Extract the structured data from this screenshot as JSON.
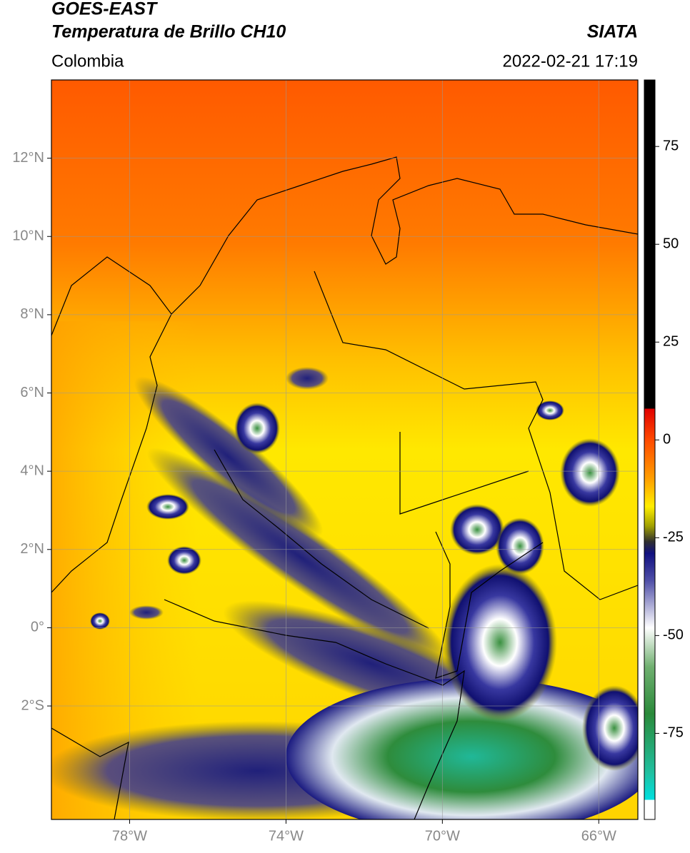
{
  "title": "GOES-EAST",
  "subtitle": "Temperatura de Brillo CH10",
  "source": "SIATA",
  "region": "Colombia",
  "timestamp": "2022-02-21 17:19",
  "map": {
    "xlim": [
      -80,
      -65
    ],
    "ylim": [
      -4.9,
      14
    ],
    "xticks": [
      {
        "value": -78,
        "label": "78°W"
      },
      {
        "value": -74,
        "label": "74°W"
      },
      {
        "value": -70,
        "label": "70°W"
      },
      {
        "value": -66,
        "label": "66°W"
      }
    ],
    "yticks": [
      {
        "value": 12,
        "label": "12°N"
      },
      {
        "value": 10,
        "label": "10°N"
      },
      {
        "value": 8,
        "label": "8°N"
      },
      {
        "value": 6,
        "label": "6°N"
      },
      {
        "value": 4,
        "label": "4°N"
      },
      {
        "value": 2,
        "label": "2°N"
      },
      {
        "value": 0,
        "label": "0°"
      },
      {
        "value": -2,
        "label": "2°S"
      }
    ],
    "grid": true
  },
  "colorbar": {
    "lim": [
      -97,
      92
    ],
    "ticks": [
      75,
      50,
      25,
      0,
      -25,
      -50,
      -75
    ],
    "colorscale": [
      {
        "value": 92,
        "color": "#000000"
      },
      {
        "value": 8,
        "color": "#000000"
      },
      {
        "value": 8,
        "color": "#e00000"
      },
      {
        "value": 0,
        "color": "#ff4a00"
      },
      {
        "value": -10,
        "color": "#ffa000"
      },
      {
        "value": -17,
        "color": "#ffee00"
      },
      {
        "value": -22,
        "color": "#a0a000"
      },
      {
        "value": -26,
        "color": "#303030"
      },
      {
        "value": -29,
        "color": "#101080"
      },
      {
        "value": -36,
        "color": "#5050a8"
      },
      {
        "value": -48,
        "color": "#ffffff"
      },
      {
        "value": -58,
        "color": "#70b070"
      },
      {
        "value": -70,
        "color": "#2a8a3a"
      },
      {
        "value": -85,
        "color": "#20c0a0"
      },
      {
        "value": -92,
        "color": "#00e0e0"
      },
      {
        "value": -92,
        "color": "#ffffff"
      },
      {
        "value": -97,
        "color": "#ffffff"
      }
    ]
  }
}
